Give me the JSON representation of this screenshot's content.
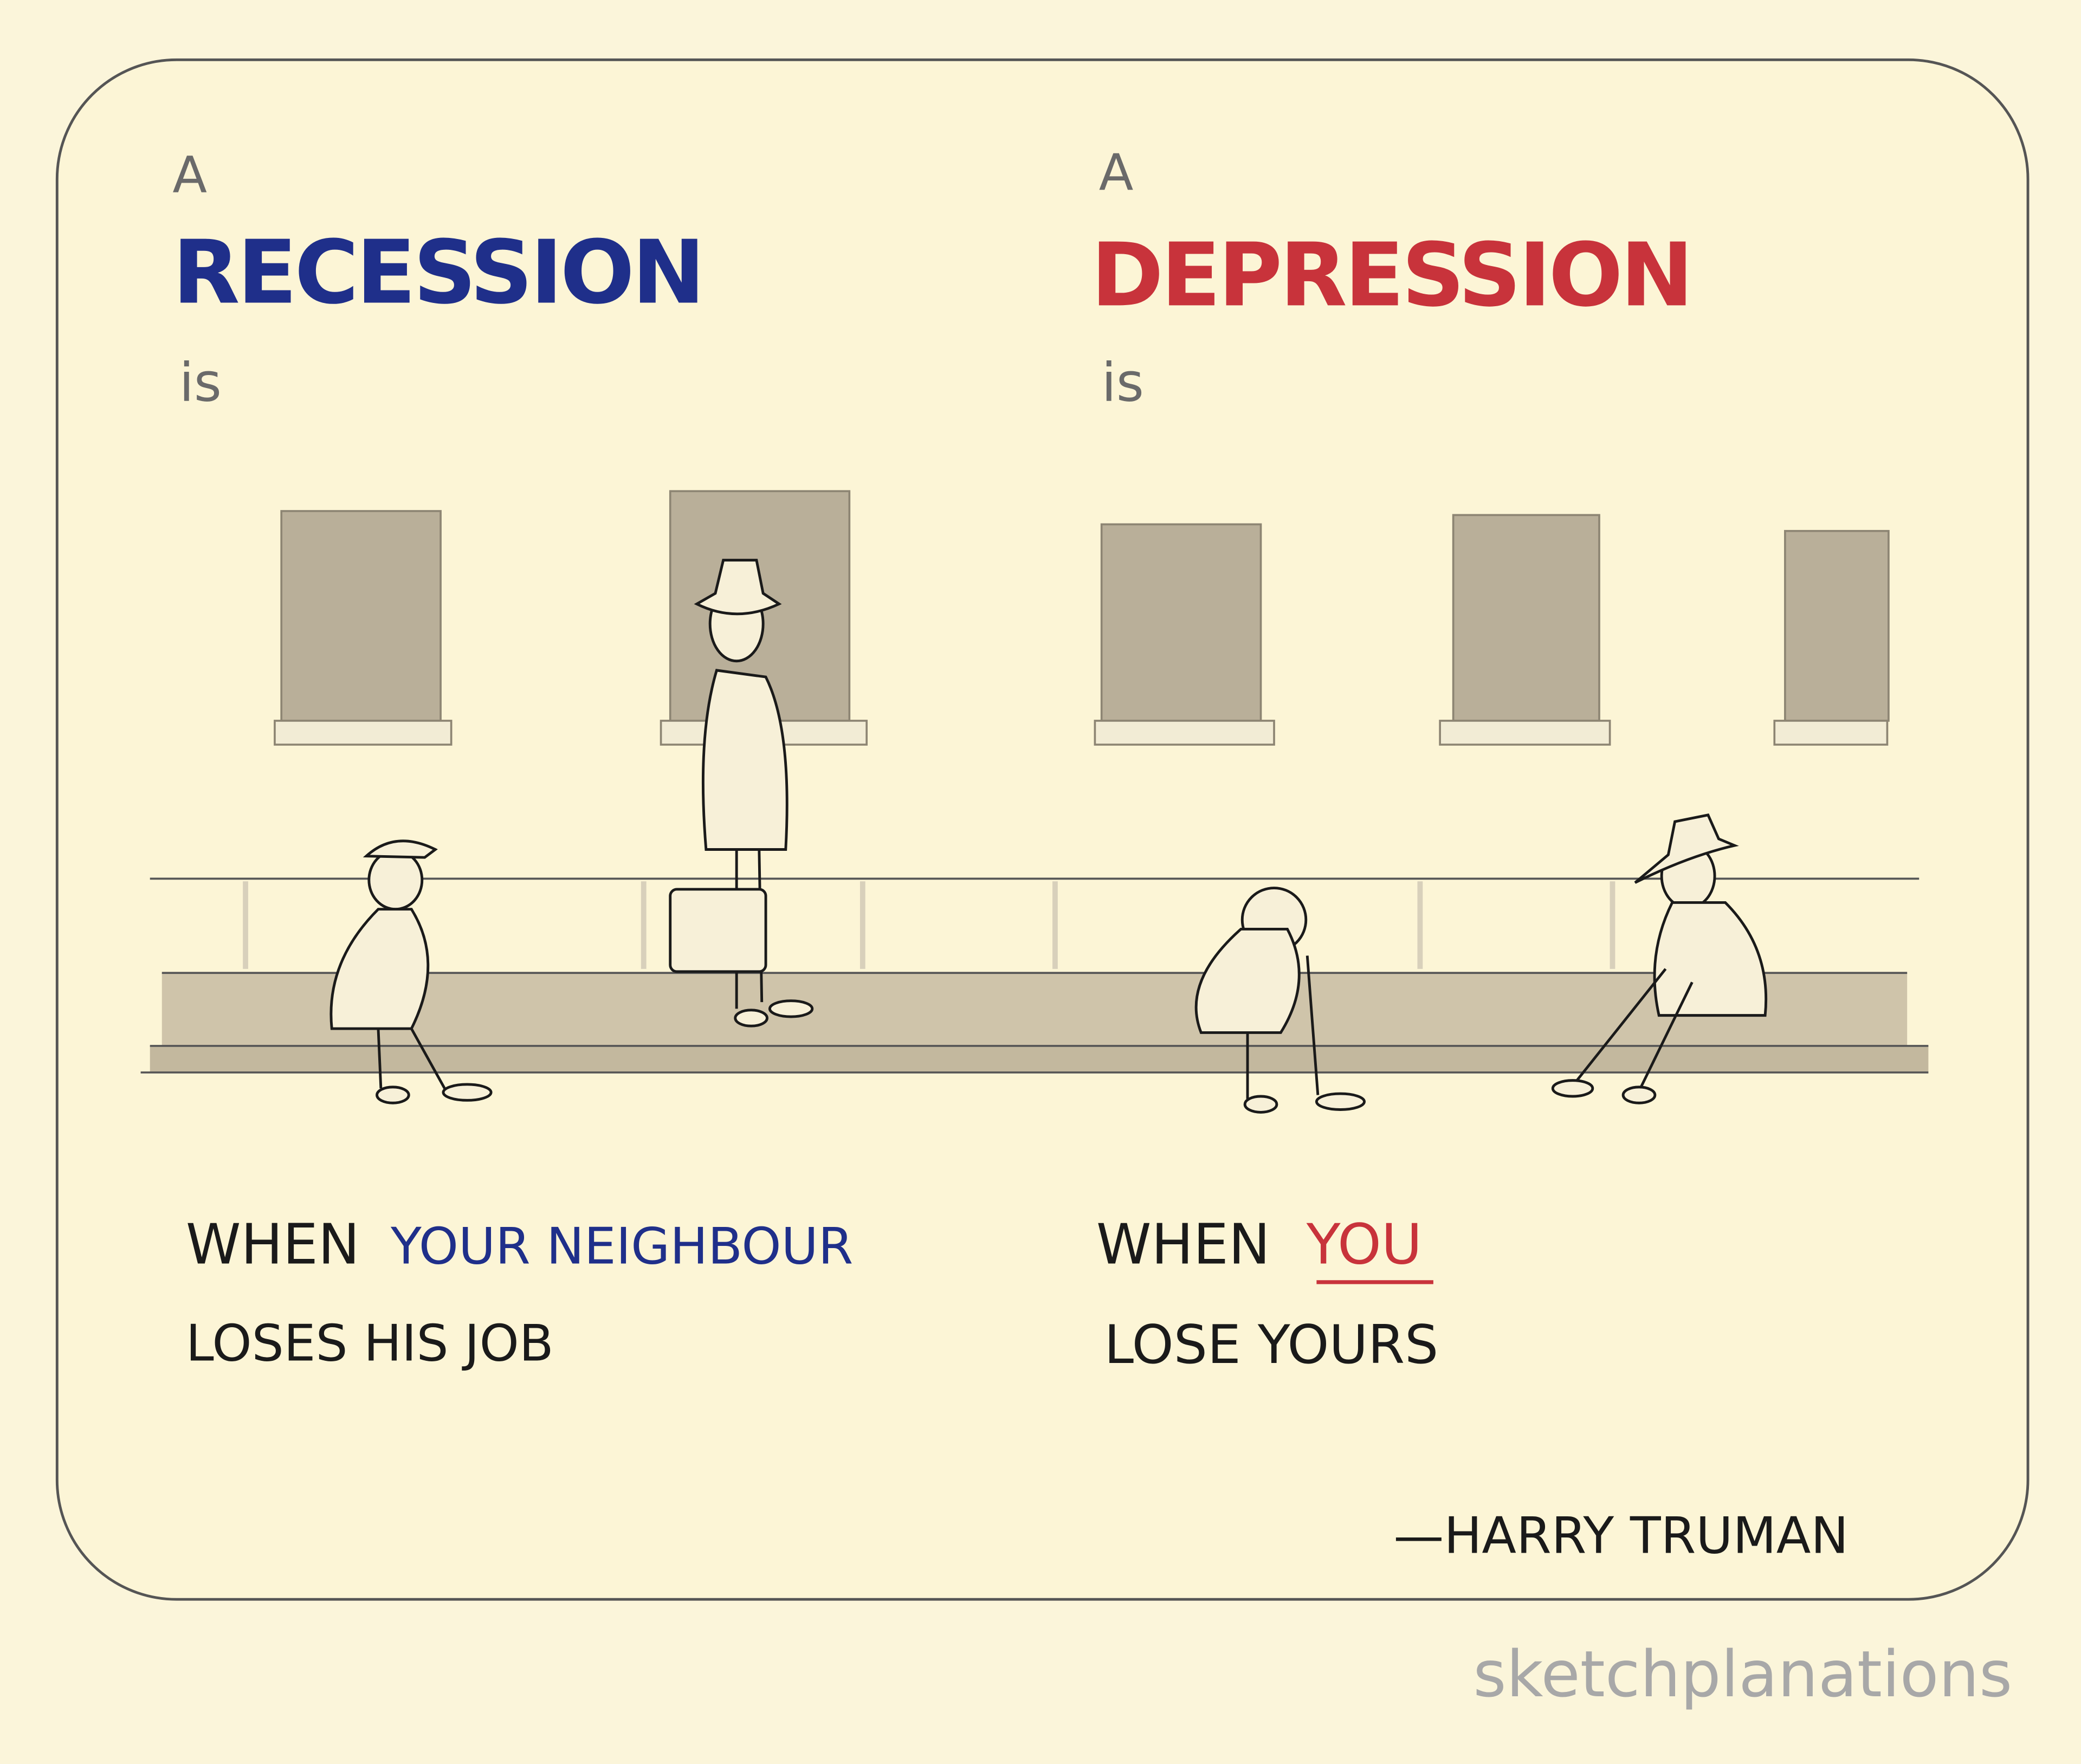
{
  "left": {
    "article": "A",
    "term": "RECESSION",
    "verb": "is",
    "line1_prefix": "WHEN",
    "line1_highlight": "YOUR NEIGHBOUR",
    "line2": "LOSES HIS JOB"
  },
  "right": {
    "article": "A",
    "term": "DEPRESSION",
    "verb": "is",
    "line1_prefix": "WHEN",
    "line1_highlight": "YOU",
    "line2": "LOSE YOURS"
  },
  "attribution": "—HARRY TRUMAN",
  "brand": "sketchplanations",
  "colors": {
    "background": "#fbf5da",
    "recession": "#1f2f8a",
    "depression": "#c8333b",
    "ink": "#1a1a1a",
    "gray_text": "#6a6a6a",
    "window": "#b9af99",
    "pavement": "#cfc4aa"
  }
}
